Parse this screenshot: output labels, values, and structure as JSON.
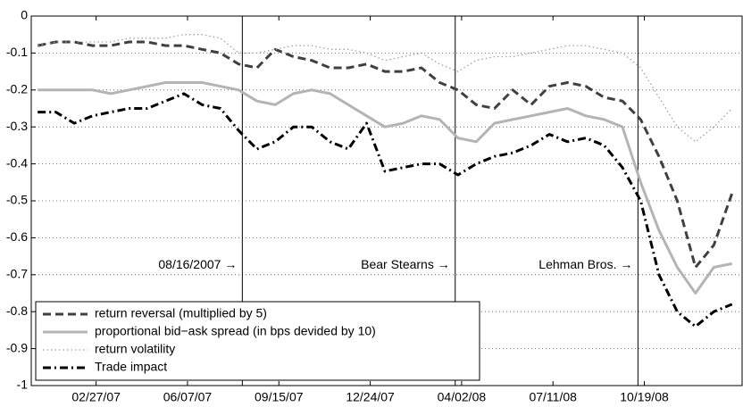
{
  "chart_data": {
    "type": "line",
    "x": [
      "2006-12-25",
      "2007-01-14",
      "2007-02-03",
      "2007-02-23",
      "2007-03-15",
      "2007-04-04",
      "2007-04-24",
      "2007-05-14",
      "2007-06-03",
      "2007-06-23",
      "2007-07-13",
      "2007-08-02",
      "2007-08-22",
      "2007-09-11",
      "2007-10-01",
      "2007-10-21",
      "2007-11-10",
      "2007-11-30",
      "2007-12-20",
      "2008-01-09",
      "2008-01-29",
      "2008-02-18",
      "2008-03-09",
      "2008-03-29",
      "2008-04-18",
      "2008-05-08",
      "2008-05-28",
      "2008-06-17",
      "2008-07-07",
      "2008-07-27",
      "2008-08-16",
      "2008-09-05",
      "2008-09-25",
      "2008-10-15",
      "2008-11-04",
      "2008-11-24",
      "2008-12-14",
      "2009-01-03",
      "2009-01-23"
    ],
    "series": [
      {
        "name": "return reversal (multiplied by 5)",
        "color": "#404040",
        "linestyle": "dashed",
        "values": [
          -0.08,
          -0.07,
          -0.07,
          -0.08,
          -0.08,
          -0.07,
          -0.07,
          -0.08,
          -0.08,
          -0.09,
          -0.1,
          -0.13,
          -0.14,
          -0.09,
          -0.11,
          -0.12,
          -0.14,
          -0.14,
          -0.13,
          -0.15,
          -0.15,
          -0.14,
          -0.18,
          -0.2,
          -0.24,
          -0.25,
          -0.2,
          -0.24,
          -0.19,
          -0.18,
          -0.19,
          -0.22,
          -0.23,
          -0.28,
          -0.38,
          -0.5,
          -0.68,
          -0.62,
          -0.48
        ]
      },
      {
        "name": "proportional bid−ask spread (in bps devided by 10)",
        "color": "#b4b4b4",
        "linestyle": "solid",
        "values": [
          -0.2,
          -0.2,
          -0.2,
          -0.2,
          -0.21,
          -0.2,
          -0.19,
          -0.18,
          -0.18,
          -0.18,
          -0.19,
          -0.2,
          -0.23,
          -0.24,
          -0.21,
          -0.2,
          -0.21,
          -0.24,
          -0.27,
          -0.3,
          -0.29,
          -0.27,
          -0.28,
          -0.33,
          -0.34,
          -0.29,
          -0.28,
          -0.27,
          -0.26,
          -0.25,
          -0.27,
          -0.28,
          -0.3,
          -0.45,
          -0.58,
          -0.68,
          -0.75,
          -0.68,
          -0.67
        ]
      },
      {
        "name": "return volatility",
        "color": "#a0a0a0",
        "linestyle": "dotted",
        "values": [
          -0.08,
          -0.07,
          -0.07,
          -0.07,
          -0.07,
          -0.06,
          -0.06,
          -0.06,
          -0.05,
          -0.05,
          -0.06,
          -0.1,
          -0.1,
          -0.09,
          -0.08,
          -0.08,
          -0.09,
          -0.09,
          -0.1,
          -0.12,
          -0.11,
          -0.1,
          -0.13,
          -0.15,
          -0.12,
          -0.11,
          -0.11,
          -0.1,
          -0.09,
          -0.08,
          -0.08,
          -0.09,
          -0.1,
          -0.14,
          -0.22,
          -0.3,
          -0.34,
          -0.3,
          -0.25
        ]
      },
      {
        "name": "Trade impact",
        "color": "#000000",
        "linestyle": "dashdot",
        "values": [
          -0.26,
          -0.26,
          -0.29,
          -0.27,
          -0.26,
          -0.25,
          -0.25,
          -0.23,
          -0.21,
          -0.24,
          -0.25,
          -0.31,
          -0.36,
          -0.34,
          -0.3,
          -0.3,
          -0.34,
          -0.36,
          -0.29,
          -0.42,
          -0.41,
          -0.4,
          -0.4,
          -0.43,
          -0.4,
          -0.38,
          -0.37,
          -0.35,
          -0.32,
          -0.34,
          -0.33,
          -0.35,
          -0.41,
          -0.5,
          -0.7,
          -0.8,
          -0.84,
          -0.8,
          -0.78
        ]
      }
    ],
    "events": [
      {
        "label": "08/16/2007 →",
        "x": "2007-08-06"
      },
      {
        "label": "Bear Stearns →",
        "x": "2008-03-26"
      },
      {
        "label": "Lehman Bros. →",
        "x": "2008-10-12"
      }
    ],
    "xlim": [
      "2006-12-18",
      "2009-02-03"
    ],
    "xticks": [
      {
        "value": "2007-02-27",
        "label": "02/27/07"
      },
      {
        "value": "2007-06-07",
        "label": "06/07/07"
      },
      {
        "value": "2007-09-15",
        "label": "09/15/07"
      },
      {
        "value": "2007-12-24",
        "label": "12/24/07"
      },
      {
        "value": "2008-04-02",
        "label": "04/02/08"
      },
      {
        "value": "2008-07-11",
        "label": "07/11/08"
      },
      {
        "value": "2008-10-19",
        "label": "10/19/08"
      }
    ],
    "ylim": [
      -1,
      0
    ],
    "yticks": [
      0,
      -0.1,
      -0.2,
      -0.3,
      -0.4,
      -0.5,
      -0.6,
      -0.7,
      -0.8,
      -0.9,
      -1
    ],
    "grid": true,
    "legend": "lower left"
  }
}
